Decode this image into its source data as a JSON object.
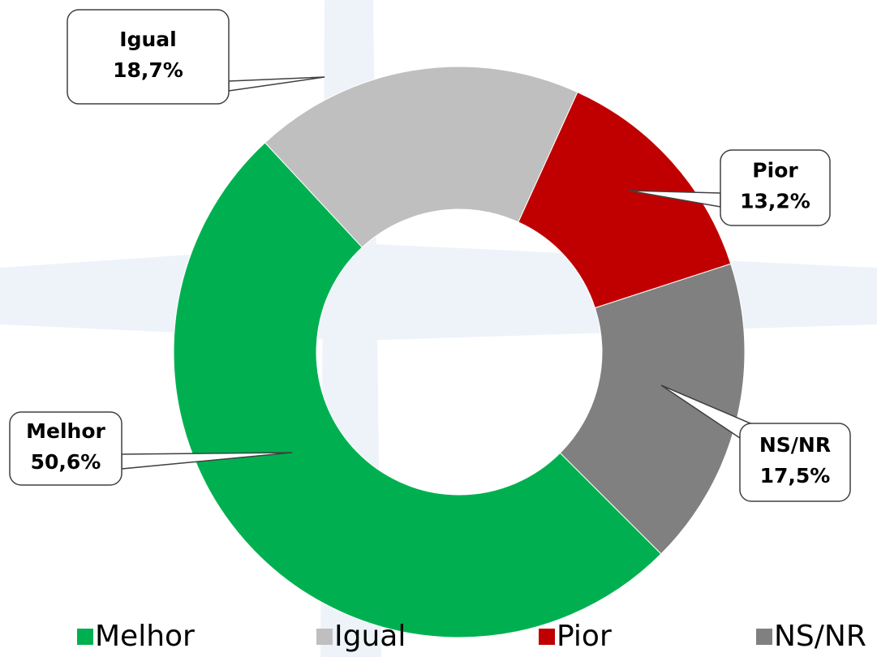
{
  "chart_data": {
    "type": "donut",
    "categories": [
      "Melhor",
      "Igual",
      "Pior",
      "NS/NR"
    ],
    "values": [
      50.6,
      18.7,
      13.2,
      17.5
    ],
    "value_labels": [
      "50,6%",
      "18,7%",
      "13,2%",
      "17,5%"
    ],
    "colors": [
      "#00b050",
      "#bfbfbf",
      "#c00000",
      "#808080"
    ],
    "legend": "bottom"
  }
}
